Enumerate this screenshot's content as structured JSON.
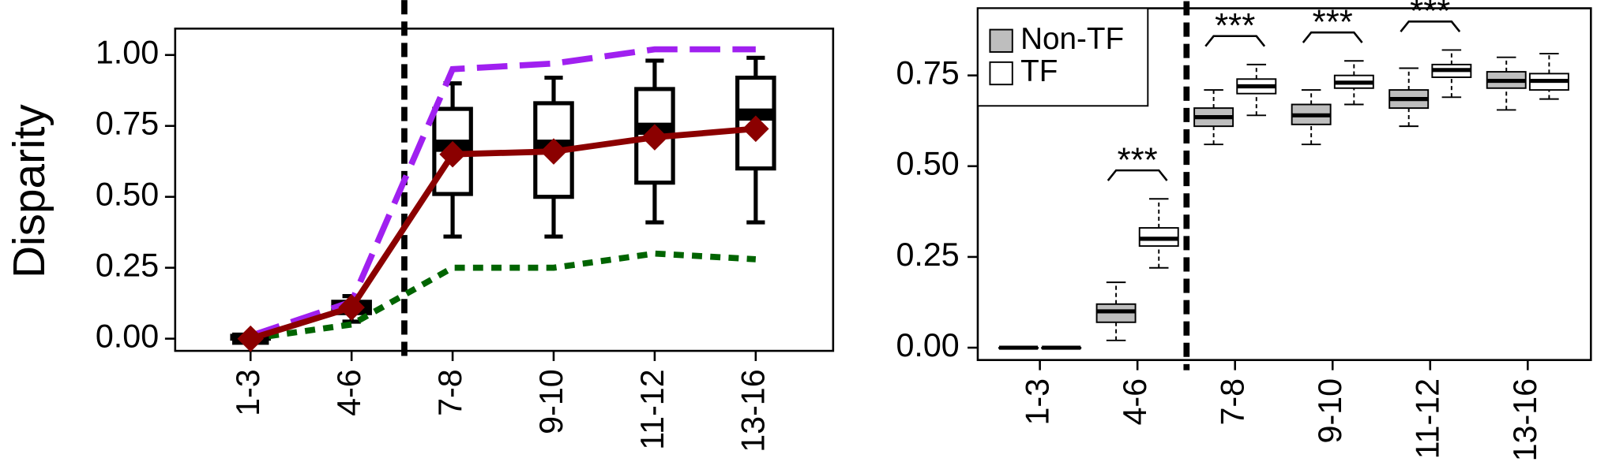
{
  "chart_data": [
    {
      "type": "box-line",
      "y_label": "Disparity",
      "categories": [
        "1-3",
        "4-6",
        "7-8",
        "9-10",
        "11-12",
        "13-16"
      ],
      "ylim": [
        -0.043,
        1.093
      ],
      "yticks": [
        {
          "value": 0,
          "label": "0.00"
        },
        {
          "value": 0.25,
          "label": "0.25"
        },
        {
          "value": 0.5,
          "label": "0.50"
        },
        {
          "value": 0.75,
          "label": "0.75"
        },
        {
          "value": 1,
          "label": "1.00"
        }
      ],
      "boxes": {
        "color": "#ffffff",
        "min": [
          0,
          0.06,
          0.36,
          0.36,
          0.41,
          0.41
        ],
        "q1": [
          0,
          0.09,
          0.51,
          0.5,
          0.55,
          0.6
        ],
        "median": [
          0,
          0.11,
          0.68,
          0.68,
          0.74,
          0.79
        ],
        "q3": [
          0.01,
          0.13,
          0.81,
          0.83,
          0.88,
          0.92
        ],
        "max": [
          0.01,
          0.15,
          0.9,
          0.92,
          0.98,
          0.99
        ]
      },
      "series": [
        {
          "color": "#a020f0",
          "style": "dashed",
          "values": [
            0.01,
            0.13,
            0.95,
            0.97,
            1.02,
            1.02
          ]
        },
        {
          "color": "#006400",
          "style": "dotted",
          "values": [
            0,
            0.05,
            0.25,
            0.25,
            0.3,
            0.28
          ]
        },
        {
          "color": "#8b0000",
          "style": "solid",
          "marker": "diamond",
          "values": [
            0,
            0.11,
            0.65,
            0.66,
            0.71,
            0.74
          ]
        }
      ]
    },
    {
      "type": "grouped-box",
      "categories": [
        "1-3",
        "4-6",
        "7-8",
        "9-10",
        "11-12",
        "13-16"
      ],
      "ylim": [
        -0.034,
        0.935
      ],
      "yticks": [
        {
          "value": 0,
          "label": "0.00"
        },
        {
          "value": 0.25,
          "label": "0.25"
        },
        {
          "value": 0.5,
          "label": "0.50"
        },
        {
          "value": 0.75,
          "label": "0.75"
        }
      ],
      "legend": "top-left",
      "series": [
        {
          "name": "Non-TF",
          "color": "#bebebe",
          "min": [
            0,
            0.02,
            0.56,
            0.56,
            0.61,
            0.655
          ],
          "q1": [
            0,
            0.07,
            0.61,
            0.615,
            0.66,
            0.715
          ],
          "median": [
            0,
            0.1,
            0.635,
            0.64,
            0.685,
            0.735
          ],
          "q3": [
            0,
            0.12,
            0.66,
            0.67,
            0.71,
            0.76
          ],
          "max": [
            0,
            0.18,
            0.71,
            0.71,
            0.77,
            0.8
          ]
        },
        {
          "name": "TF",
          "color": "#ffffff",
          "min": [
            0,
            0.22,
            0.64,
            0.67,
            0.69,
            0.685
          ],
          "q1": [
            0,
            0.28,
            0.7,
            0.715,
            0.745,
            0.71
          ],
          "median": [
            0,
            0.3,
            0.72,
            0.73,
            0.765,
            0.735
          ],
          "q3": [
            0,
            0.33,
            0.74,
            0.75,
            0.78,
            0.755
          ],
          "max": [
            0,
            0.41,
            0.78,
            0.79,
            0.82,
            0.81
          ]
        }
      ],
      "annotations": [
        {
          "text": "***",
          "category": "4-6"
        },
        {
          "text": "***",
          "category": "7-8"
        },
        {
          "text": "***",
          "category": "9-10"
        },
        {
          "text": "***",
          "category": "11-12"
        }
      ]
    }
  ]
}
